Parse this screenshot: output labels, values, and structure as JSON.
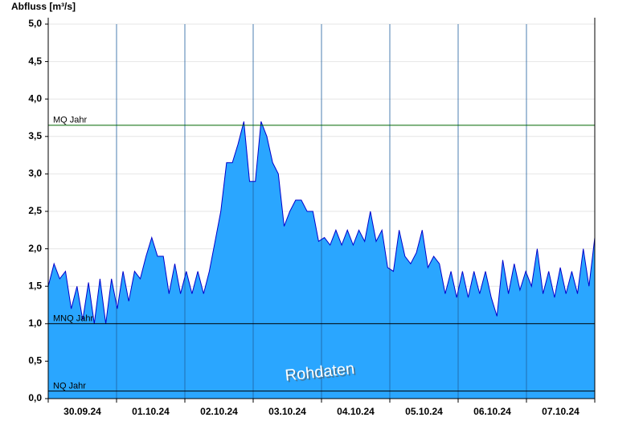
{
  "chart_data": {
    "type": "area",
    "y_axis_label": "Abfluss [m³/s]",
    "annotation": "Rohdaten",
    "line_color": "#0000cc",
    "fill_color": "#2aa6ff",
    "grid": true,
    "ylim": [
      0,
      5
    ],
    "yticks": [
      {
        "value": 0,
        "label": "0,0"
      },
      {
        "value": 0.5,
        "label": "0,5"
      },
      {
        "value": 1,
        "label": "1,0"
      },
      {
        "value": 1.5,
        "label": "1,5"
      },
      {
        "value": 2,
        "label": "2,0"
      },
      {
        "value": 2.5,
        "label": "2,5"
      },
      {
        "value": 3,
        "label": "3,0"
      },
      {
        "value": 3.5,
        "label": "3,5"
      },
      {
        "value": 4,
        "label": "4,0"
      },
      {
        "value": 4.5,
        "label": "4,5"
      },
      {
        "value": 5,
        "label": "5,0"
      }
    ],
    "reference_lines": [
      {
        "label": "MQ Jahr",
        "value": 3.65,
        "color": "#006600"
      },
      {
        "label": "MNQ Jahr",
        "value": 1.0,
        "color": "#000000"
      },
      {
        "label": "NQ Jahr",
        "value": 0.1,
        "color": "#000000"
      }
    ],
    "days": [
      {
        "label": "30.09.24",
        "values": [
          1.5,
          1.8,
          1.6,
          1.7,
          1.2,
          1.5,
          1.05,
          1.55,
          1.0,
          1.6,
          1.0,
          1.6
        ]
      },
      {
        "label": "01.10.24",
        "values": [
          1.2,
          1.7,
          1.3,
          1.7,
          1.6,
          1.9,
          2.15,
          1.9,
          1.9,
          1.4,
          1.8,
          1.4
        ]
      },
      {
        "label": "02.10.24",
        "values": [
          1.7,
          1.4,
          1.7,
          1.4,
          1.7,
          2.1,
          2.5,
          3.15,
          3.15,
          3.4,
          3.7,
          2.9
        ]
      },
      {
        "label": "03.10.24",
        "values": [
          2.9,
          3.7,
          3.5,
          3.15,
          3.0,
          2.3,
          2.5,
          2.65,
          2.65,
          2.5,
          2.5,
          2.1
        ]
      },
      {
        "label": "04.10.24",
        "values": [
          2.15,
          2.05,
          2.25,
          2.05,
          2.25,
          2.05,
          2.25,
          2.1,
          2.5,
          2.1,
          2.25,
          1.75
        ]
      },
      {
        "label": "05.10.24",
        "values": [
          1.7,
          2.25,
          1.9,
          1.8,
          1.95,
          2.25,
          1.75,
          1.9,
          1.8,
          1.4,
          1.7,
          1.35
        ]
      },
      {
        "label": "06.10.24",
        "values": [
          1.7,
          1.35,
          1.7,
          1.4,
          1.7,
          1.35,
          1.1,
          1.85,
          1.4,
          1.8,
          1.45,
          1.7
        ]
      },
      {
        "label": "07.10.24",
        "values": [
          1.5,
          2.0,
          1.4,
          1.7,
          1.35,
          1.75,
          1.4,
          1.7,
          1.4,
          2.0,
          1.5,
          2.15
        ]
      }
    ]
  }
}
